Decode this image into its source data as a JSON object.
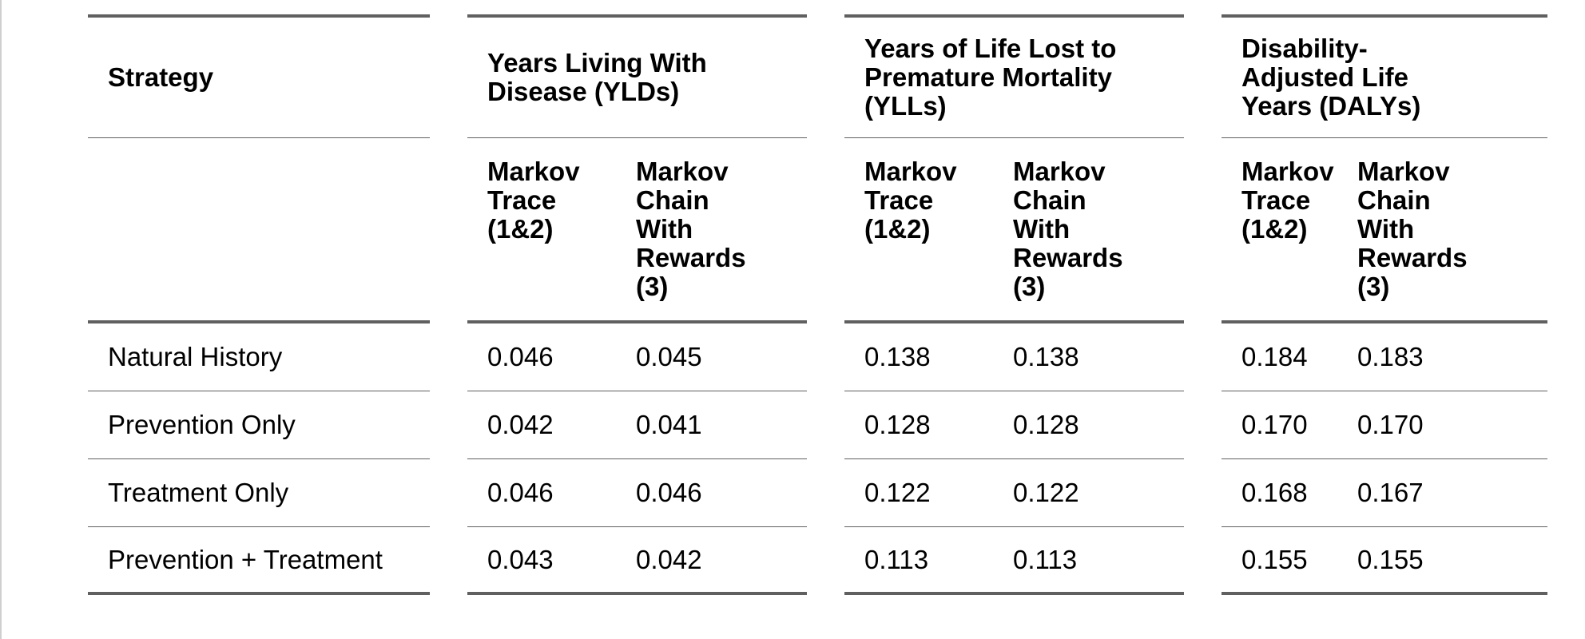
{
  "table": {
    "strategy_header": "Strategy",
    "groups": [
      {
        "label": "Years Living With Disease (YLDs)",
        "lines": [
          "Years Living With",
          "Disease (YLDs)"
        ]
      },
      {
        "label": "Years of Life Lost to Premature Mortality (YLLs)",
        "lines": [
          "Years of Life Lost to",
          "Premature Mortality",
          "(YLLs)"
        ]
      },
      {
        "label": "Disability-Adjusted Life Years (DALYs)",
        "lines": [
          "Disability-",
          "Adjusted Life",
          "Years (DALYs)"
        ]
      }
    ],
    "subheaders": {
      "markov_trace": [
        "Markov",
        "Trace",
        "(1&2)"
      ],
      "markov_chain": [
        "Markov",
        "Chain",
        "With",
        "Rewards",
        "(3)"
      ]
    },
    "rows": [
      {
        "strategy": "Natural History",
        "yld_trace": "0.046",
        "yld_chain": "0.045",
        "yll_trace": "0.138",
        "yll_chain": "0.138",
        "daly_trace": "0.184",
        "daly_chain": "0.183"
      },
      {
        "strategy": "Prevention Only",
        "yld_trace": "0.042",
        "yld_chain": "0.041",
        "yll_trace": "0.128",
        "yll_chain": "0.128",
        "daly_trace": "0.170",
        "daly_chain": "0.170"
      },
      {
        "strategy": "Treatment Only",
        "yld_trace": "0.046",
        "yld_chain": "0.046",
        "yll_trace": "0.122",
        "yll_chain": "0.122",
        "daly_trace": "0.168",
        "daly_chain": "0.167"
      },
      {
        "strategy": "Prevention + Treatment",
        "yld_trace": "0.043",
        "yld_chain": "0.042",
        "yll_trace": "0.113",
        "yll_chain": "0.113",
        "daly_trace": "0.155",
        "daly_chain": "0.155"
      }
    ]
  }
}
